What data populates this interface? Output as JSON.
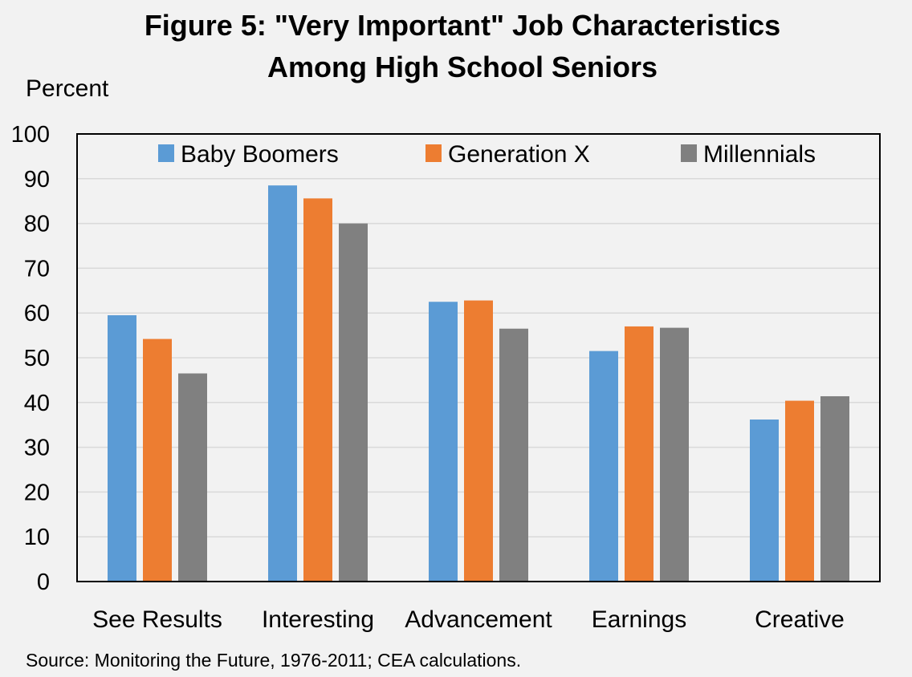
{
  "chart_data": {
    "type": "bar",
    "title": "Figure 5: \"Very Important\" Job Characteristics",
    "subtitle": "Among High School Seniors",
    "ylabel": "Percent",
    "xlabel": "",
    "categories": [
      "See Results",
      "Interesting",
      "Advancement",
      "Earnings",
      "Creative"
    ],
    "series": [
      {
        "name": "Baby Boomers",
        "color": "#5b9bd5",
        "values": [
          59.5,
          88.5,
          62.5,
          51.5,
          36.2
        ]
      },
      {
        "name": "Generation X",
        "color": "#ed7d31",
        "values": [
          54.2,
          85.6,
          62.8,
          57.0,
          40.4
        ]
      },
      {
        "name": "Millennials",
        "color": "#808080",
        "values": [
          46.5,
          80.0,
          56.5,
          56.7,
          41.4
        ]
      }
    ],
    "ylim": [
      0,
      100
    ],
    "yticks": [
      0,
      10,
      20,
      30,
      40,
      50,
      60,
      70,
      80,
      90,
      100
    ],
    "grid": true,
    "legend": "top",
    "source": "Source: Monitoring the Future, 1976-2011; CEA calculations."
  }
}
